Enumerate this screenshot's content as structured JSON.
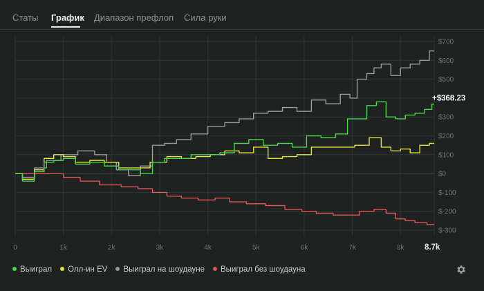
{
  "tabs": [
    {
      "label": "Статы",
      "active": false
    },
    {
      "label": "График",
      "active": true
    },
    {
      "label": "Диапазон префлоп",
      "active": false
    },
    {
      "label": "Сила руки",
      "active": false
    }
  ],
  "chart_data": {
    "type": "line",
    "xlabel": "",
    "ylabel": "",
    "xlim": [
      0,
      8700
    ],
    "ylim": [
      -300,
      700
    ],
    "x_ticks": [
      "0",
      "1k",
      "2k",
      "3k",
      "4k",
      "5k",
      "6k",
      "7k",
      "8k"
    ],
    "x_tick_values": [
      0,
      1000,
      2000,
      3000,
      4000,
      5000,
      6000,
      7000,
      8000
    ],
    "x_end_label": "8.7k",
    "y_ticks": [
      "$700",
      "$600",
      "$500",
      "$400",
      "$300",
      "$200",
      "$100",
      "$0",
      "$-100",
      "$-200",
      "$-300"
    ],
    "y_tick_values": [
      700,
      600,
      500,
      400,
      300,
      200,
      100,
      0,
      -100,
      -200,
      -300
    ],
    "grid": true,
    "legend_position": "bottom-left",
    "end_value_label": "+$368.23",
    "series": [
      {
        "name": "Выиграл",
        "color": "#4cd64c",
        "x": [
          0,
          300,
          500,
          700,
          900,
          1100,
          1400,
          1700,
          2000,
          2300,
          2500,
          2700,
          3000,
          3200,
          3500,
          3800,
          4100,
          4400,
          4700,
          5000,
          5300,
          5600,
          5900,
          6200,
          6500,
          6800,
          7000,
          7200,
          7400,
          7600,
          7800,
          8000,
          8200,
          8400,
          8600,
          8700
        ],
        "values": [
          0,
          -40,
          10,
          60,
          70,
          80,
          50,
          60,
          40,
          20,
          20,
          0,
          60,
          80,
          80,
          100,
          100,
          110,
          160,
          180,
          150,
          160,
          140,
          200,
          190,
          210,
          290,
          290,
          360,
          380,
          300,
          290,
          310,
          320,
          340,
          368
        ]
      },
      {
        "name": "Олл-ин EV",
        "color": "#e4e43c",
        "x": [
          0,
          300,
          500,
          700,
          900,
          1100,
          1400,
          1700,
          2000,
          2300,
          2600,
          3000,
          3300,
          3600,
          3900,
          4200,
          4500,
          4800,
          5100,
          5400,
          5700,
          6000,
          6300,
          6600,
          6900,
          7200,
          7500,
          7700,
          7900,
          8100,
          8300,
          8500,
          8700
        ],
        "values": [
          0,
          -30,
          20,
          80,
          100,
          90,
          60,
          70,
          60,
          30,
          30,
          60,
          90,
          80,
          90,
          100,
          120,
          110,
          140,
          80,
          90,
          100,
          140,
          140,
          140,
          150,
          190,
          140,
          120,
          130,
          110,
          150,
          160
        ]
      },
      {
        "name": "Выиграл на шоудауне",
        "color": "#9a9a9a",
        "x": [
          0,
          300,
          500,
          800,
          1100,
          1500,
          1800,
          2000,
          2200,
          2500,
          2700,
          3000,
          3200,
          3500,
          3800,
          4200,
          4500,
          4800,
          5100,
          5400,
          5700,
          6000,
          6300,
          6600,
          6900,
          7000,
          7200,
          7400,
          7500,
          7700,
          7900,
          8100,
          8300,
          8500,
          8700
        ],
        "values": [
          0,
          -20,
          30,
          70,
          100,
          120,
          100,
          60,
          20,
          -10,
          40,
          150,
          160,
          180,
          210,
          250,
          270,
          290,
          320,
          330,
          350,
          330,
          390,
          370,
          420,
          400,
          500,
          530,
          560,
          580,
          520,
          560,
          580,
          600,
          650
        ]
      },
      {
        "name": "Выиграл без шоудауна",
        "color": "#e05454",
        "x": [
          0,
          500,
          800,
          1200,
          1500,
          2000,
          2400,
          2700,
          3000,
          3300,
          3600,
          4000,
          4300,
          4600,
          5000,
          5400,
          5800,
          6100,
          6400,
          6800,
          7000,
          7300,
          7600,
          7800,
          8000,
          8200,
          8400,
          8700
        ],
        "values": [
          0,
          0,
          0,
          -20,
          -40,
          -60,
          -70,
          -80,
          -100,
          -120,
          -130,
          -140,
          -130,
          -150,
          -160,
          -170,
          -190,
          -200,
          -210,
          -220,
          -220,
          -200,
          -190,
          -210,
          -240,
          -250,
          -260,
          -270
        ]
      }
    ]
  },
  "settings_icon": "gear-icon"
}
